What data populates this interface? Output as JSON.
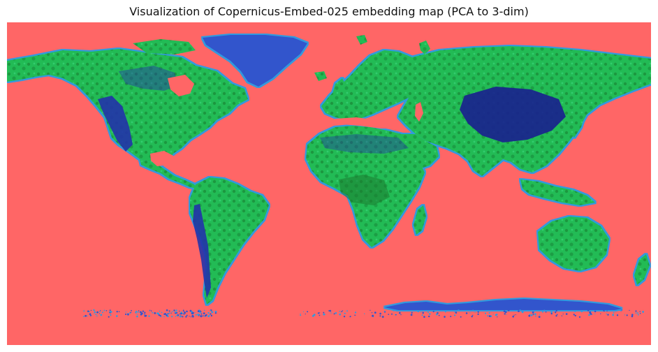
{
  "figure": {
    "title": "Visualization of Copernicus-Embed-025 embedding map (PCA to 3-dim)"
  },
  "map": {
    "projection": "equirectangular",
    "extent": {
      "lon": [
        -180,
        180
      ],
      "lat": [
        -90,
        90
      ]
    },
    "colors": {
      "ocean": "#ff6666",
      "land_primary": "#22bb55",
      "land_dark": "#1a7a2e",
      "highland": "#2233aa",
      "highland_deep": "#1a1f8f",
      "coast": "#3399dd",
      "ice": "#3355cc"
    },
    "regions": [
      "north-america",
      "greenland",
      "south-america",
      "europe",
      "africa",
      "asia",
      "australia",
      "antarctica"
    ]
  }
}
